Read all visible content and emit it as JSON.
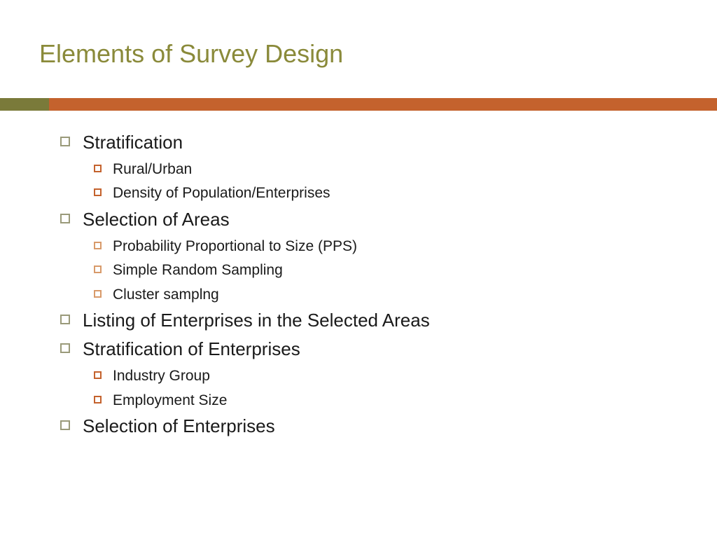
{
  "title": "Elements of Survey Design",
  "colors": {
    "title_color": "#8a8a3a",
    "accent_left": "#7a7a3a",
    "accent_right": "#c4622d",
    "bullet_l1": "#9a9a7a",
    "bullet_l2_dark": "#c4622d",
    "bullet_l2_light": "#d89a6a",
    "text_color": "#1a1a1a"
  },
  "layout": {
    "accent_left_width": 70
  },
  "items": [
    {
      "level": 1,
      "text": "Stratification"
    },
    {
      "level": 2,
      "text": "Rural/Urban",
      "bullet_variant": "dark"
    },
    {
      "level": 2,
      "text": "Density of Population/Enterprises",
      "bullet_variant": "dark"
    },
    {
      "level": 1,
      "text": "Selection of Areas"
    },
    {
      "level": 2,
      "text": "Probability Proportional to Size (PPS)",
      "bullet_variant": "light"
    },
    {
      "level": 2,
      "text": "Simple Random Sampling",
      "bullet_variant": "light"
    },
    {
      "level": 2,
      "text": "Cluster samplng",
      "bullet_variant": "light"
    },
    {
      "level": 1,
      "text": "Listing of Enterprises in the Selected Areas"
    },
    {
      "level": 1,
      "text": "Stratification of Enterprises"
    },
    {
      "level": 2,
      "text": "Industry Group",
      "bullet_variant": "dark"
    },
    {
      "level": 2,
      "text": "Employment Size",
      "bullet_variant": "dark"
    },
    {
      "level": 1,
      "text": "Selection of Enterprises"
    }
  ]
}
